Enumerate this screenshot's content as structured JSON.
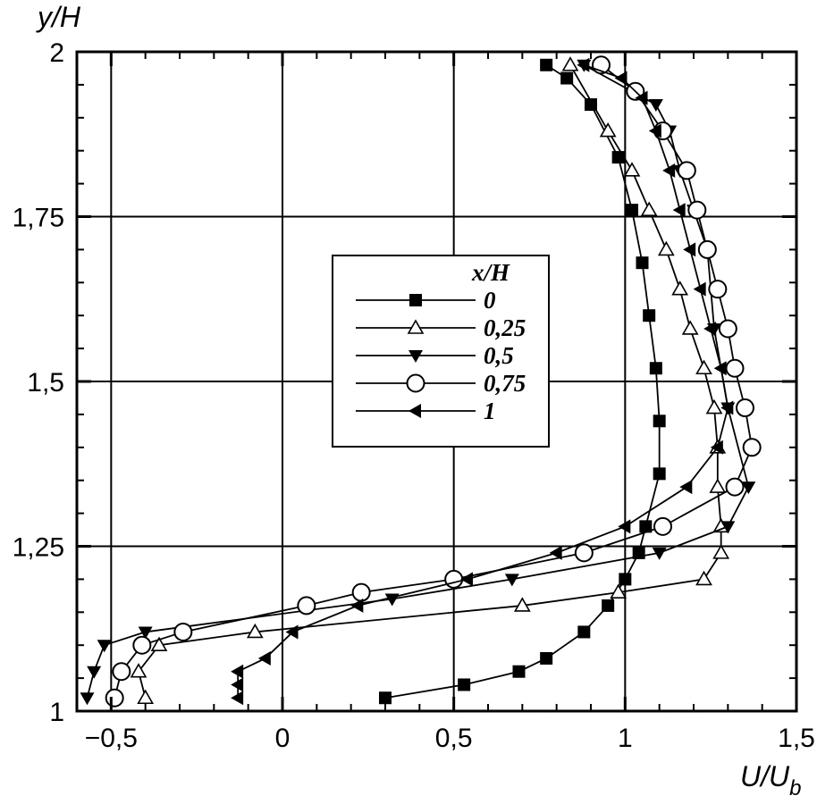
{
  "chart_data": {
    "type": "line",
    "xlabel": "U/U",
    "xlabel_sub": "b",
    "ylabel": "y/H",
    "xlim": [
      -0.6,
      1.5
    ],
    "ylim": [
      1,
      2
    ],
    "x_ticks": [
      -0.5,
      0,
      0.5,
      1,
      1.5
    ],
    "x_tick_labels": [
      "−0,5",
      "0",
      "0,5",
      "1",
      "1,5"
    ],
    "y_ticks": [
      1,
      1.25,
      1.5,
      1.75,
      2
    ],
    "y_tick_labels": [
      "1",
      "1,25",
      "1,5",
      "1,75",
      "2"
    ],
    "grid": true,
    "legend_title": "x/H",
    "legend_position": "center",
    "series": [
      {
        "name": "0",
        "marker": "square-filled",
        "x": [
          0.3,
          0.53,
          0.69,
          0.77,
          0.88,
          0.95,
          1.0,
          1.04,
          1.06,
          1.1,
          1.1,
          1.09,
          1.07,
          1.05,
          1.02,
          0.98,
          0.9,
          0.83,
          0.77
        ],
        "y": [
          1.02,
          1.04,
          1.06,
          1.08,
          1.12,
          1.16,
          1.2,
          1.24,
          1.28,
          1.36,
          1.44,
          1.52,
          1.6,
          1.68,
          1.76,
          1.84,
          1.92,
          1.96,
          1.98
        ]
      },
      {
        "name": "0,25",
        "marker": "triangle-up-open",
        "x": [
          -0.4,
          -0.42,
          -0.36,
          -0.08,
          0.7,
          0.98,
          1.23,
          1.28,
          1.28,
          1.27,
          1.27,
          1.26,
          1.23,
          1.19,
          1.16,
          1.12,
          1.07,
          1.02,
          0.95,
          0.84
        ],
        "y": [
          1.02,
          1.06,
          1.1,
          1.12,
          1.16,
          1.18,
          1.2,
          1.24,
          1.28,
          1.34,
          1.4,
          1.46,
          1.52,
          1.58,
          1.64,
          1.7,
          1.76,
          1.82,
          1.88,
          1.98
        ]
      },
      {
        "name": "0,5",
        "marker": "triangle-down-filled",
        "x": [
          -0.57,
          -0.55,
          -0.52,
          -0.4,
          0.32,
          0.67,
          1.1,
          1.3,
          1.36,
          1.3,
          1.26,
          1.24,
          1.2,
          1.16,
          1.13,
          1.09,
          0.88
        ],
        "y": [
          1.02,
          1.06,
          1.1,
          1.12,
          1.17,
          1.2,
          1.24,
          1.28,
          1.34,
          1.46,
          1.58,
          1.7,
          1.76,
          1.82,
          1.88,
          1.92,
          1.98
        ]
      },
      {
        "name": "0,75",
        "marker": "circle-open",
        "x": [
          -0.49,
          -0.47,
          -0.41,
          -0.29,
          0.07,
          0.23,
          0.5,
          0.88,
          1.11,
          1.32,
          1.37,
          1.35,
          1.32,
          1.3,
          1.27,
          1.24,
          1.21,
          1.18,
          1.11,
          1.03,
          0.93
        ],
        "y": [
          1.02,
          1.06,
          1.1,
          1.12,
          1.16,
          1.18,
          1.2,
          1.24,
          1.28,
          1.34,
          1.4,
          1.46,
          1.52,
          1.58,
          1.64,
          1.7,
          1.76,
          1.82,
          1.88,
          1.94,
          1.98
        ]
      },
      {
        "name": "1",
        "marker": "triangle-left-filled",
        "x": [
          -0.13,
          -0.13,
          -0.13,
          -0.05,
          0.03,
          0.22,
          0.54,
          0.8,
          1.0,
          1.18,
          1.27,
          1.3,
          1.28,
          1.25,
          1.22,
          1.19,
          1.16,
          1.13,
          1.09,
          1.05,
          0.99,
          0.88
        ],
        "y": [
          1.02,
          1.04,
          1.06,
          1.08,
          1.12,
          1.16,
          1.2,
          1.24,
          1.28,
          1.34,
          1.4,
          1.46,
          1.52,
          1.58,
          1.64,
          1.7,
          1.76,
          1.82,
          1.88,
          1.93,
          1.96,
          1.98
        ]
      }
    ]
  }
}
